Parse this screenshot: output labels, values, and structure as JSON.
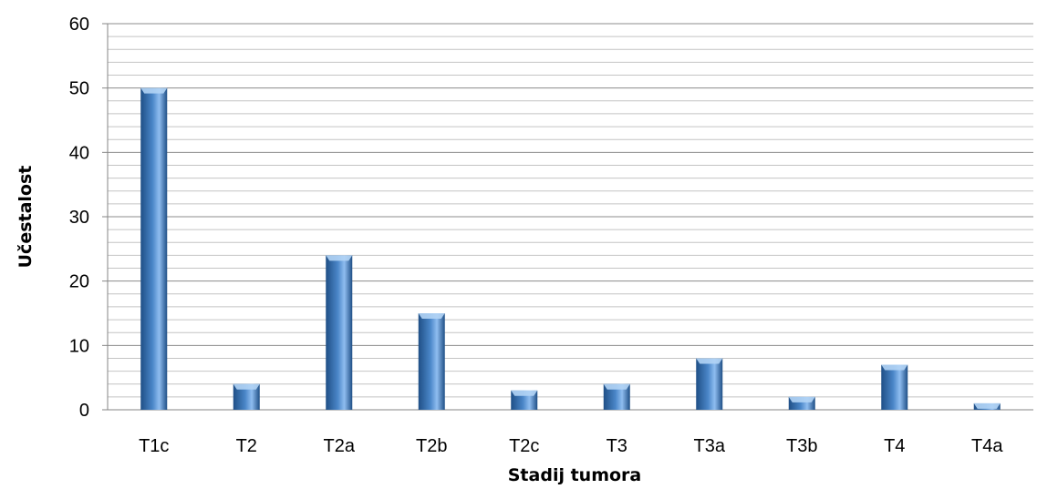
{
  "chart_data": {
    "type": "bar",
    "title": "",
    "xlabel": "Stadij tumora",
    "ylabel": "Učestalost",
    "categories": [
      "T1c",
      "T2",
      "T2a",
      "T2b",
      "T2c",
      "T3",
      "T3a",
      "T3b",
      "T4",
      "T4a"
    ],
    "values": [
      50,
      4,
      24,
      15,
      3,
      4,
      8,
      2,
      7,
      1
    ],
    "ylim": [
      0,
      60
    ],
    "yticks": [
      0,
      10,
      20,
      30,
      40,
      50,
      60
    ],
    "minor_tick_step": 2,
    "grid": true,
    "legend": "none",
    "colors": {
      "bar_dark": "#1f4f86",
      "bar_mid": "#4a86c8",
      "bar_light": "#8fbdf0",
      "bar_cap": "#b3d4f5",
      "grid_major": "#8c8c8c",
      "grid_minor": "#c4c4c4"
    }
  }
}
